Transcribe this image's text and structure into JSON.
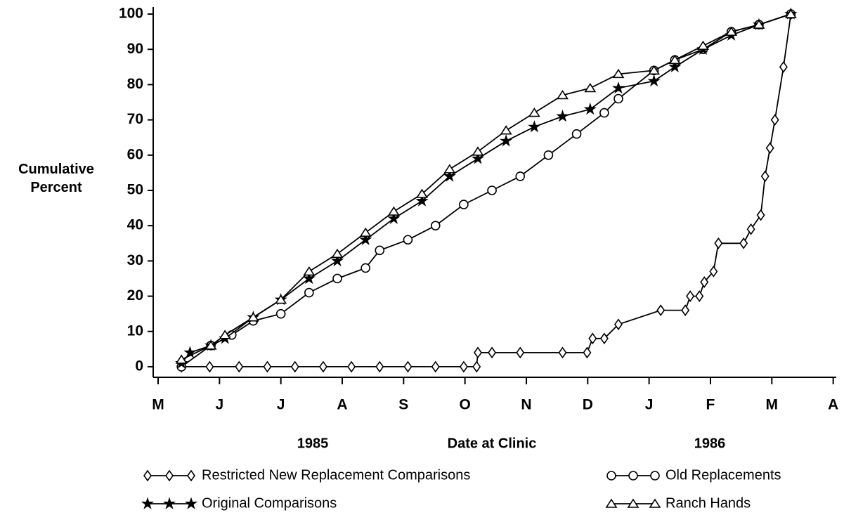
{
  "chart_data": {
    "type": "line",
    "ylabel": "Cumulative Percent",
    "xlabel": "Date at Clinic",
    "year_labels": [
      "1985",
      "1986"
    ],
    "xlim": [
      -0.08,
      11.05
    ],
    "xticks": [
      {
        "value": 0,
        "label": "M"
      },
      {
        "value": 1,
        "label": "J"
      },
      {
        "value": 2,
        "label": "J"
      },
      {
        "value": 3,
        "label": "A"
      },
      {
        "value": 4,
        "label": "S"
      },
      {
        "value": 5,
        "label": "O"
      },
      {
        "value": 6,
        "label": "N"
      },
      {
        "value": 7,
        "label": "D"
      },
      {
        "value": 8,
        "label": "J"
      },
      {
        "value": 9,
        "label": "F"
      },
      {
        "value": 10,
        "label": "M"
      },
      {
        "value": 11,
        "label": "A"
      }
    ],
    "ylim": [
      -3,
      102
    ],
    "yticks": [
      0,
      10,
      20,
      30,
      40,
      50,
      60,
      70,
      80,
      90,
      100
    ],
    "series": [
      {
        "name": "Restricted New Replacement Comparisons",
        "color": "#000000",
        "marker": "diamond",
        "x": [
          0.38,
          0.84,
          1.32,
          1.78,
          2.23,
          2.69,
          3.15,
          3.61,
          4.07,
          4.52,
          4.98,
          5.19,
          5.21,
          5.44,
          5.9,
          6.59,
          6.99,
          7.08,
          7.27,
          7.5,
          8.19,
          8.59,
          8.67,
          8.82,
          8.9,
          9.05,
          9.13,
          9.54,
          9.66,
          9.82,
          9.89,
          9.97,
          10.05,
          10.19,
          10.31
        ],
        "values": [
          0,
          0,
          0,
          0,
          0,
          0,
          0,
          0,
          0,
          0,
          0,
          0,
          4,
          4,
          4,
          4,
          4,
          8,
          8,
          12,
          16,
          16,
          20,
          20,
          24,
          27,
          35,
          35,
          39,
          43,
          54,
          62,
          70,
          85,
          100
        ]
      },
      {
        "name": "Old Replacements",
        "color": "#000000",
        "marker": "circle",
        "x": [
          0.38,
          0.86,
          1.2,
          1.55,
          2.0,
          2.46,
          2.92,
          3.38,
          3.61,
          4.07,
          4.52,
          4.98,
          5.44,
          5.9,
          6.36,
          6.82,
          7.27,
          7.5,
          8.08,
          8.42,
          8.88,
          9.34,
          9.79,
          10.31
        ],
        "values": [
          0,
          6,
          9,
          13,
          15,
          21,
          25,
          28,
          33,
          36,
          40,
          46,
          50,
          54,
          60,
          66,
          72,
          76,
          84,
          87,
          90,
          95,
          97,
          100
        ]
      },
      {
        "name": "Original Comparisons",
        "color": "#000000",
        "marker": "star",
        "x": [
          0.38,
          0.52,
          0.86,
          1.09,
          1.55,
          2.0,
          2.46,
          2.92,
          3.38,
          3.84,
          4.3,
          4.75,
          5.21,
          5.67,
          6.13,
          6.59,
          7.04,
          7.5,
          8.08,
          8.42,
          8.88,
          9.34,
          9.79,
          10.31
        ],
        "values": [
          1,
          4,
          6,
          8,
          14,
          19,
          25,
          30,
          36,
          42,
          47,
          54,
          59,
          64,
          68,
          71,
          73,
          79,
          81,
          85,
          90,
          94,
          97,
          100
        ]
      },
      {
        "name": "Ranch Hands",
        "color": "#000000",
        "marker": "triangle",
        "x": [
          0.38,
          0.86,
          1.09,
          1.55,
          2.0,
          2.46,
          2.92,
          3.38,
          3.84,
          4.3,
          4.75,
          5.21,
          5.67,
          6.13,
          6.59,
          7.04,
          7.5,
          8.08,
          8.42,
          8.88,
          9.34,
          9.79,
          10.31
        ],
        "values": [
          2,
          6,
          9,
          14,
          19,
          27,
          32,
          38,
          44,
          49,
          56,
          61,
          67,
          72,
          77,
          79,
          83,
          84,
          87,
          91,
          95,
          97,
          100
        ]
      }
    ]
  }
}
